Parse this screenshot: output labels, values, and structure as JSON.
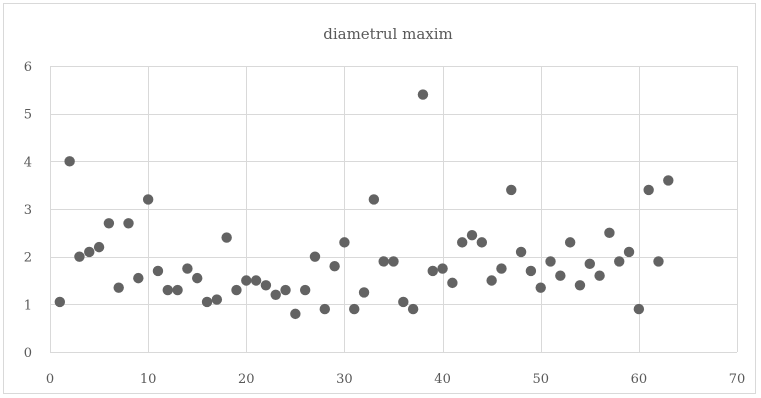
{
  "chart_data": {
    "type": "scatter",
    "title": "diametrul maxim",
    "xlabel": "",
    "ylabel": "",
    "xlim": [
      0,
      70
    ],
    "ylim": [
      0,
      6
    ],
    "x_ticks": [
      0,
      10,
      20,
      30,
      40,
      50,
      60,
      70
    ],
    "y_ticks": [
      0,
      1,
      2,
      3,
      4,
      5,
      6
    ],
    "grid": true,
    "legend": "none",
    "marker_color": "#636363",
    "series": [
      {
        "x": [
          1,
          2,
          3,
          4,
          5,
          6,
          7,
          8,
          9,
          10,
          11,
          12,
          13,
          14,
          15,
          16,
          17,
          18,
          19,
          20,
          21,
          22,
          23,
          24,
          25,
          26,
          27,
          28,
          29,
          30,
          31,
          32,
          33,
          34,
          35,
          36,
          37,
          38,
          39,
          40,
          41,
          42,
          43,
          44,
          45,
          46,
          47,
          48,
          49,
          50,
          51,
          52,
          53,
          54,
          55,
          56,
          57,
          58,
          59,
          60,
          61,
          62,
          63
        ],
        "y": [
          1.05,
          4.0,
          2.0,
          2.1,
          2.2,
          2.7,
          1.35,
          2.7,
          1.55,
          3.2,
          1.7,
          1.3,
          1.3,
          1.75,
          1.55,
          1.05,
          1.1,
          2.4,
          1.3,
          1.5,
          1.5,
          1.4,
          1.2,
          1.3,
          0.8,
          1.3,
          2.0,
          0.9,
          1.8,
          2.3,
          0.9,
          1.25,
          3.2,
          1.9,
          1.9,
          1.05,
          0.9,
          5.4,
          1.7,
          1.75,
          1.45,
          2.3,
          2.45,
          2.3,
          1.5,
          1.75,
          3.4,
          2.1,
          1.7,
          1.35,
          1.9,
          1.6,
          2.3,
          1.4,
          1.85,
          1.6,
          2.5,
          1.9,
          2.1,
          0.9,
          3.4,
          1.9,
          3.6
        ]
      }
    ]
  }
}
